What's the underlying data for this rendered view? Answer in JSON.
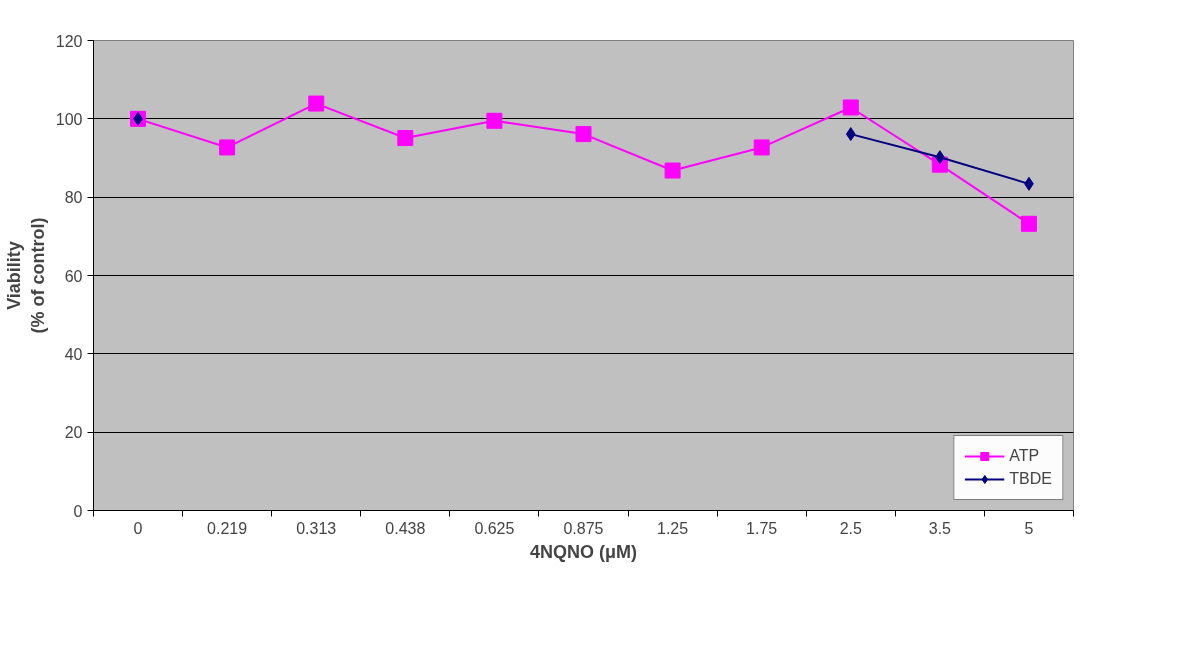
{
  "chart_data": {
    "type": "line",
    "xlabel": "4NQNO (μM)",
    "ylabel": "Viability\n(% of control)",
    "categories": [
      "0",
      "0.219",
      "0.313",
      "0.438",
      "0.625",
      "0.875",
      "1.25",
      "1.75",
      "2.5",
      "3.5",
      "5"
    ],
    "series": [
      {
        "name": "ATP",
        "color": "#ff00ff",
        "marker": "square",
        "values": [
          100,
          92.7,
          103.9,
          95.1,
          99.5,
          96.1,
          86.8,
          92.7,
          102.9,
          88.3,
          73.2
        ]
      },
      {
        "name": "TBDE",
        "color": "#000080",
        "marker": "diamond",
        "values": [
          100,
          null,
          null,
          null,
          null,
          null,
          null,
          null,
          96.1,
          90.2,
          83.4
        ]
      }
    ],
    "ylim": [
      0,
      120
    ],
    "yticks": [
      0,
      20,
      40,
      60,
      80,
      100,
      120
    ],
    "grid": "y",
    "legend": "bottom right"
  }
}
